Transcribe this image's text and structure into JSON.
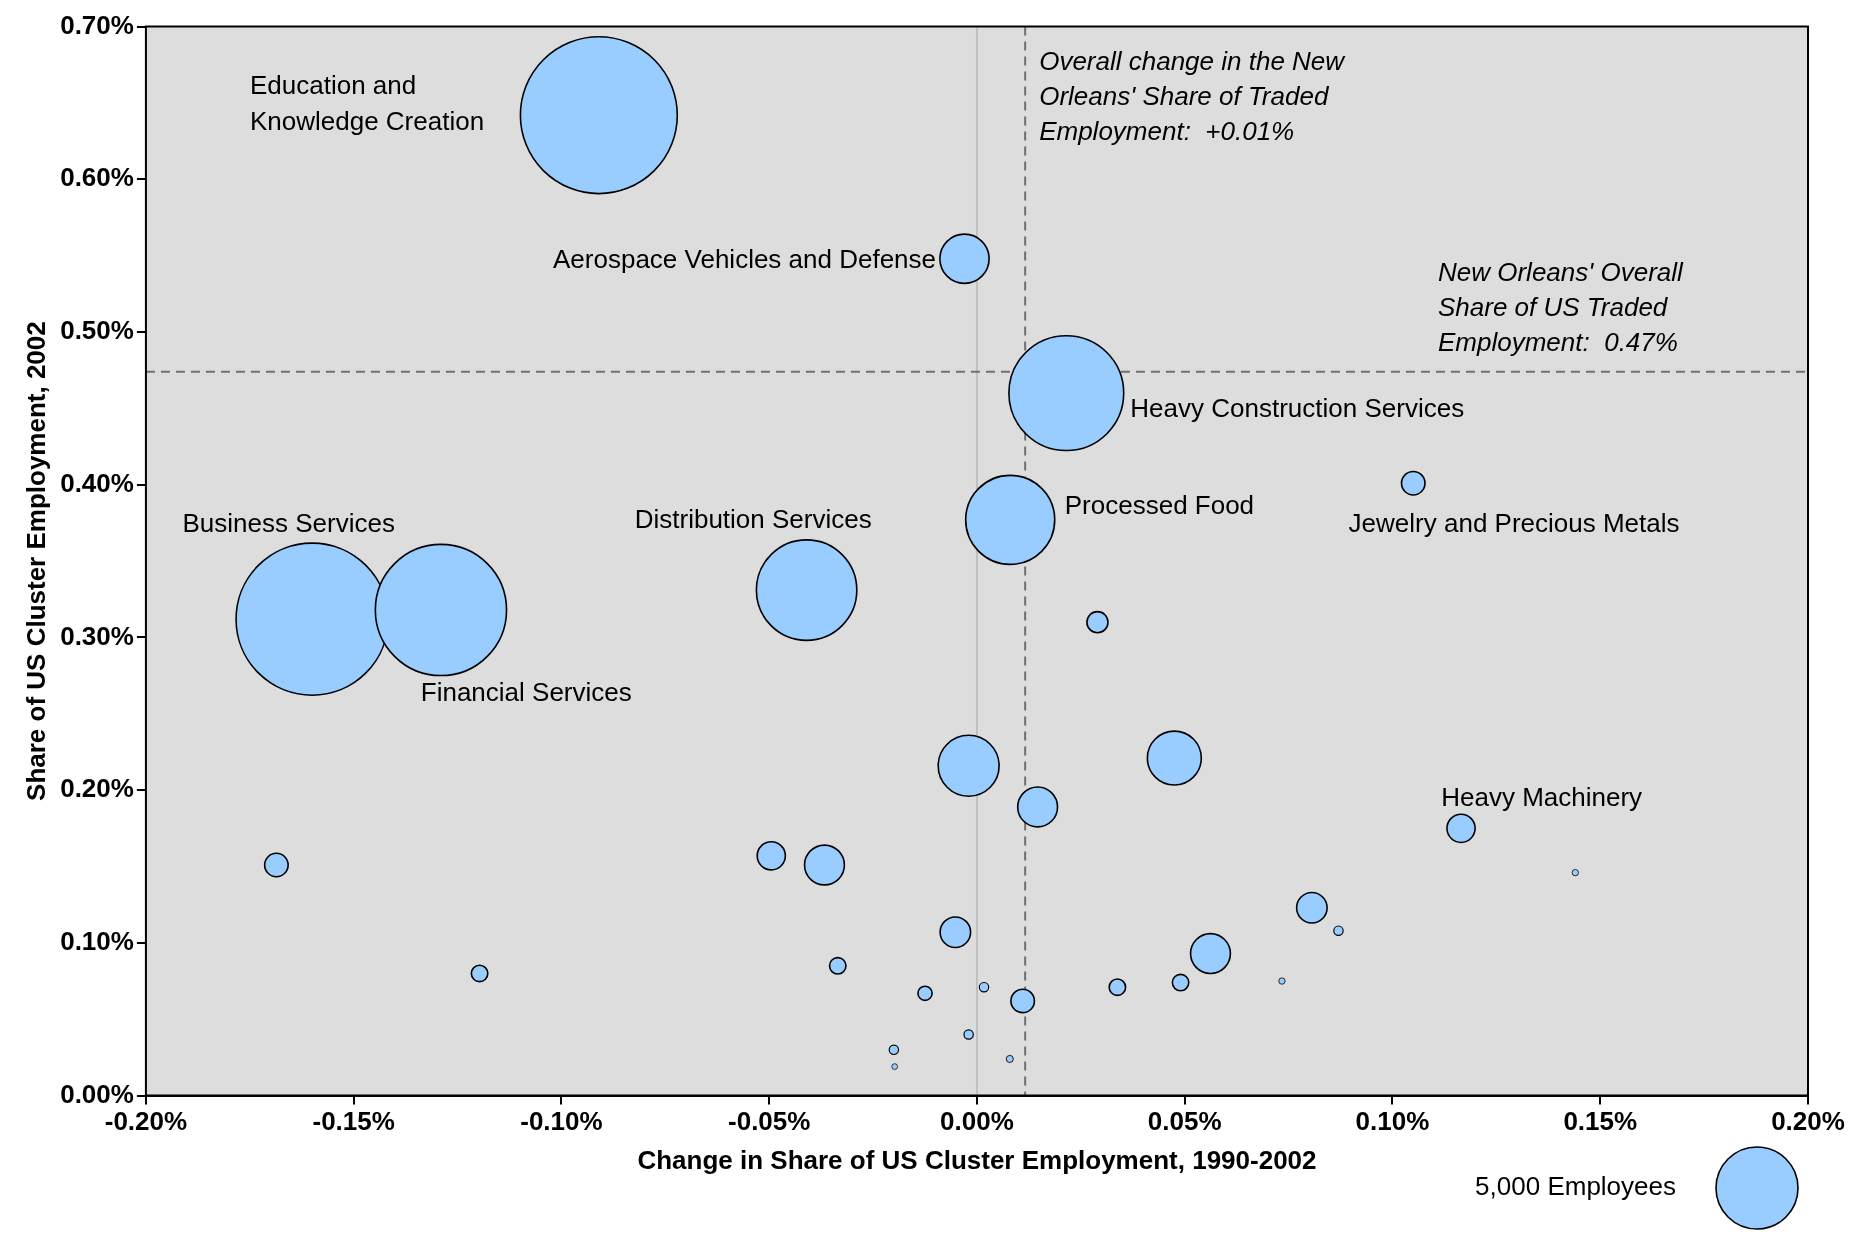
{
  "chart_data": {
    "type": "bubble",
    "xlabel": "Change in Share of US Cluster Employment, 1990-2002",
    "ylabel": "Share of US Cluster Employment, 2002",
    "color": "#99ccff",
    "x": [
      -0.091,
      -0.003,
      0.0215,
      0.008,
      0.105,
      -0.16,
      -0.129,
      -0.041,
      0.029,
      -0.002,
      0.0475,
      0.0146,
      0.1165,
      0.144,
      -0.1686,
      -0.0495,
      -0.0367,
      0.0806,
      0.087,
      -0.0052,
      0.0562,
      -0.1197,
      -0.0335,
      -0.0125,
      0.0017,
      0.011,
      0.0338,
      0.049,
      0.0734,
      -0.02,
      -0.0198,
      -0.002,
      0.0079
    ],
    "values": [
      0.642,
      0.548,
      0.46,
      0.377,
      0.401,
      0.312,
      0.318,
      0.331,
      0.31,
      0.216,
      0.221,
      0.189,
      0.175,
      0.146,
      0.151,
      0.157,
      0.151,
      0.123,
      0.108,
      0.107,
      0.093,
      0.08,
      0.085,
      0.067,
      0.071,
      0.062,
      0.071,
      0.074,
      0.075,
      0.03,
      0.019,
      0.04,
      0.024
    ],
    "sizes": [
      18300,
      1800,
      9800,
      5900,
      410,
      17200,
      12800,
      7500,
      330,
      2760,
      2160,
      1180,
      590,
      30,
      410,
      590,
      1180,
      690,
      65,
      690,
      1180,
      200,
      200,
      150,
      65,
      410,
      200,
      200,
      30,
      65,
      25,
      65,
      37
    ],
    "size_legend": [
      {
        "value": 5000,
        "label": "5,000 Employees"
      }
    ],
    "xlim": [
      -0.2,
      0.2
    ],
    "xticks": [
      {
        "value": -0.2,
        "label": "-0.20%"
      },
      {
        "value": -0.15,
        "label": "-0.15%"
      },
      {
        "value": -0.1,
        "label": "-0.10%"
      },
      {
        "value": -0.05,
        "label": "-0.05%"
      },
      {
        "value": 0,
        "label": "0.00%"
      },
      {
        "value": 0.05,
        "label": "0.05%"
      },
      {
        "value": 0.1,
        "label": "0.10%"
      },
      {
        "value": 0.15,
        "label": "0.15%"
      },
      {
        "value": 0.2,
        "label": "0.20%"
      }
    ],
    "ylim": [
      0,
      0.7
    ],
    "yticks": [
      {
        "value": 0,
        "label": "0.00%"
      },
      {
        "value": 0.1,
        "label": "0.10%"
      },
      {
        "value": 0.2,
        "label": "0.20%"
      },
      {
        "value": 0.3,
        "label": "0.30%"
      },
      {
        "value": 0.4,
        "label": "0.40%"
      },
      {
        "value": 0.5,
        "label": "0.50%"
      },
      {
        "value": 0.6,
        "label": "0.60%"
      },
      {
        "value": 0.7,
        "label": "0.70%"
      }
    ],
    "ref_lines": [
      {
        "axis": "x",
        "value": 0,
        "color": "#c0c0c0",
        "line_style": "solid"
      },
      {
        "axis": "x",
        "value": 0.0116,
        "color": "#707070",
        "line_style": "dashed",
        "label": "Overall change in the New\nOrleans' Share of Traded\nEmployment:  +0.01%"
      },
      {
        "axis": "y",
        "value": 0.474,
        "color": "#707070",
        "line_style": "dashed",
        "label": "New Orleans' Overall\nShare of US Traded\nEmployment:  0.47%"
      }
    ],
    "annotations": [
      "Education and\nKnowledge Creation",
      {
        "text": "Aerospace Vehicles and Defense",
        "x": -0.003,
        "y": 0.548
      },
      {
        "text": "Heavy Construction Services",
        "x": 0.0215,
        "y": 0.46
      },
      {
        "text": "Processed Food",
        "x": 0.008,
        "y": 0.377
      },
      {
        "text": "Jewelry and Precious Metals",
        "x": 0.105,
        "y": 0.401
      },
      "Business Services",
      {
        "text": "Financial Services",
        "x": -0.129,
        "y": 0.318
      },
      {
        "text": "Distribution Services",
        "x": -0.041,
        "y": 0.331
      },
      {
        "text": "Heavy Machinery",
        "x": 0.1165,
        "y": 0.175
      }
    ],
    "legend": false
  }
}
